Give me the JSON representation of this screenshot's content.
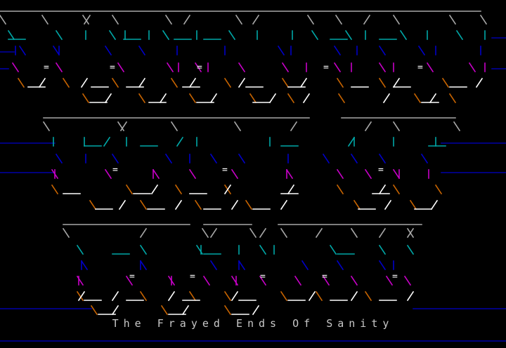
{
  "title_words": [
    "THE FRAYED",
    "ENDS OF",
    "SANITY"
  ],
  "subtitle": "The Frayed Ends Of Sanity",
  "palette": {
    "background": "#000000",
    "gray": "#a8a8a8",
    "white": "#ffffff",
    "cyan": "#00a8a8",
    "blue": "#0000c8",
    "magenta": "#c800c8",
    "orange": "#c86400",
    "rule_blue": "#0000a8"
  }
}
